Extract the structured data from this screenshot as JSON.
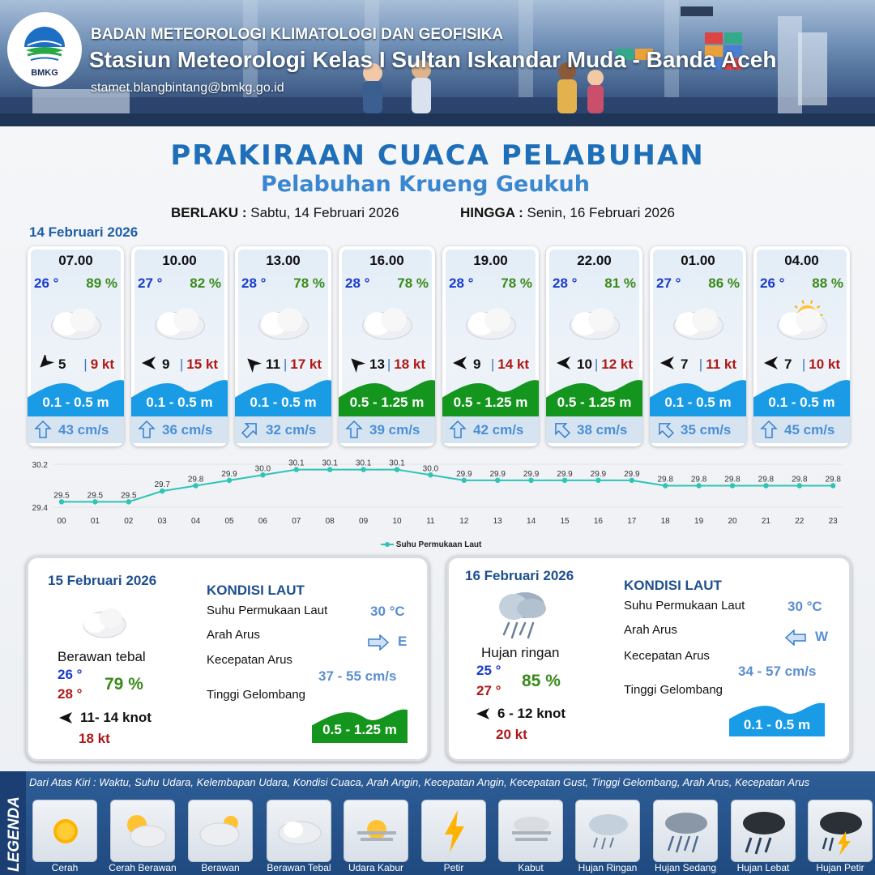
{
  "header": {
    "logo_text": "BMKG",
    "agency": "BADAN METEOROLOGI KLIMATOLOGI DAN GEOFISIKA",
    "station": "Stasiun Meteorologi Kelas I Sultan Iskandar Muda - Banda Aceh",
    "email": "stamet.blangbintang@bmkg.go.id"
  },
  "title": "PRAKIRAAN CUACA PELABUHAN",
  "subtitle": "Pelabuhan Krueng Geukuh",
  "validity": {
    "from_label": "BERLAKU :",
    "from_value": "Sabtu, 14 Februari 2026",
    "to_label": "HINGGA :",
    "to_value": "Senin, 16 Februari 2026"
  },
  "day1": {
    "date": "14 Februari 2026",
    "hours": [
      {
        "time": "07.00",
        "temp": "26 °",
        "rh": "89 %",
        "icon": "berawan-tebal",
        "wind_dir": "southeast",
        "wind": "5",
        "gust": "9 kt",
        "wave": "0.1 - 0.5 m",
        "wave_color": "#1a9be6",
        "current_dir": "north",
        "current": "43 cm/s"
      },
      {
        "time": "10.00",
        "temp": "27 °",
        "rh": "82 %",
        "icon": "berawan-tebal",
        "wind_dir": "east",
        "wind": "9",
        "gust": "15 kt",
        "wave": "0.1 - 0.5 m",
        "wave_color": "#1a9be6",
        "current_dir": "north",
        "current": "36 cm/s"
      },
      {
        "time": "13.00",
        "temp": "28 °",
        "rh": "78 %",
        "icon": "berawan-tebal",
        "wind_dir": "northeast",
        "wind": "11",
        "gust": "17 kt",
        "wave": "0.1 - 0.5 m",
        "wave_color": "#1a9be6",
        "current_dir": "northeast",
        "current": "32 cm/s"
      },
      {
        "time": "16.00",
        "temp": "28 °",
        "rh": "78 %",
        "icon": "berawan-tebal",
        "wind_dir": "northeast",
        "wind": "13",
        "gust": "18 kt",
        "wave": "0.5 - 1.25 m",
        "wave_color": "#14961e",
        "current_dir": "north",
        "current": "39 cm/s"
      },
      {
        "time": "19.00",
        "temp": "28 °",
        "rh": "78 %",
        "icon": "berawan-tebal",
        "wind_dir": "east",
        "wind": "9",
        "gust": "14 kt",
        "wave": "0.5 - 1.25 m",
        "wave_color": "#14961e",
        "current_dir": "north",
        "current": "42 cm/s"
      },
      {
        "time": "22.00",
        "temp": "28 °",
        "rh": "81 %",
        "icon": "berawan-tebal",
        "wind_dir": "east",
        "wind": "10",
        "gust": "12 kt",
        "wave": "0.5 - 1.25 m",
        "wave_color": "#14961e",
        "current_dir": "northwest",
        "current": "38 cm/s"
      },
      {
        "time": "01.00",
        "temp": "27 °",
        "rh": "86 %",
        "icon": "berawan-tebal",
        "wind_dir": "east",
        "wind": "7",
        "gust": "11 kt",
        "wave": "0.1 - 0.5 m",
        "wave_color": "#1a9be6",
        "current_dir": "northwest",
        "current": "35 cm/s"
      },
      {
        "time": "04.00",
        "temp": "26 °",
        "rh": "88 %",
        "icon": "cerah-berawan",
        "wind_dir": "east",
        "wind": "7",
        "gust": "10 kt",
        "wave": "0.1 - 0.5 m",
        "wave_color": "#1a9be6",
        "current_dir": "north",
        "current": "45 cm/s"
      }
    ]
  },
  "chart_data": {
    "type": "line",
    "x": [
      "00",
      "01",
      "02",
      "03",
      "04",
      "05",
      "06",
      "07",
      "08",
      "09",
      "10",
      "11",
      "12",
      "13",
      "14",
      "15",
      "16",
      "17",
      "18",
      "19",
      "20",
      "21",
      "22",
      "23"
    ],
    "series": [
      {
        "name": "Suhu Permukaan Laut",
        "values": [
          29.5,
          29.5,
          29.5,
          29.7,
          29.8,
          29.9,
          30.0,
          30.1,
          30.1,
          30.1,
          30.1,
          30.0,
          29.9,
          29.9,
          29.9,
          29.9,
          29.9,
          29.9,
          29.8,
          29.8,
          29.8,
          29.8,
          29.8,
          29.8
        ],
        "color": "#2ec4b6"
      }
    ],
    "ylim": [
      29.4,
      30.2
    ],
    "yticks": [
      "30.2",
      "29.4"
    ],
    "legend": "bottom"
  },
  "day2": {
    "date": "15 Februari 2026",
    "icon": "berawan-tebal",
    "condition": "Berawan tebal",
    "tmin": "26 °",
    "tmax": "28 °",
    "rh": "79 %",
    "wind_dir": "east",
    "wind": "11- 14 knot",
    "gust": "18 kt",
    "sea": {
      "heading": "KONDISI LAUT",
      "sst_label": "Suhu Permukaan Laut",
      "sst": "30 °C",
      "cur_dir_label": "Arah Arus",
      "cur_dir": "E",
      "cur_spd_label": "Kecepatan Arus",
      "cur_spd": "37  - 55 cm/s",
      "wave_label": "Tinggi Gelombang",
      "wave": "0.5 - 1.25 m",
      "wave_color": "#14961e"
    }
  },
  "day3": {
    "date": "16 Februari 2026",
    "icon": "hujan-ringan",
    "condition": "Hujan ringan",
    "tmin": "25 °",
    "tmax": "27 °",
    "rh": "85 %",
    "wind_dir": "east",
    "wind": "6  - 12 knot",
    "gust": "20 kt",
    "sea": {
      "heading": "KONDISI LAUT",
      "sst_label": "Suhu Permukaan Laut",
      "sst": "30 °C",
      "cur_dir_label": "Arah Arus",
      "cur_dir": "W",
      "cur_spd_label": "Kecepatan Arus",
      "cur_spd": "34 - 57 cm/s",
      "wave_label": "Tinggi Gelombang",
      "wave": "0.1 - 0.5 m",
      "wave_color": "#1a9be6"
    }
  },
  "legend": {
    "side_label": "LEGENDA",
    "description": "Dari Atas Kiri : Waktu, Suhu Udara, Kelembapan Udara, Kondisi Cuaca, Arah Angin, Kecepatan Angin, Kecepatan Gust, Tinggi Gelombang, Arah Arus, Kecepatan Arus",
    "items": [
      {
        "label": "Cerah",
        "icon": "sun"
      },
      {
        "label": "Cerah Berawan",
        "icon": "sun-cloud"
      },
      {
        "label": "Berawan",
        "icon": "cloud-sun"
      },
      {
        "label": "Berawan Tebal",
        "icon": "cloud"
      },
      {
        "label": "Udara Kabur",
        "icon": "haze"
      },
      {
        "label": "Petir",
        "icon": "lightning"
      },
      {
        "label": "Kabut",
        "icon": "fog"
      },
      {
        "label": "Hujan Ringan",
        "icon": "rain-light"
      },
      {
        "label": "Hujan Sedang",
        "icon": "rain-moderate"
      },
      {
        "label": "Hujan Lebat",
        "icon": "rain-heavy"
      },
      {
        "label": "Hujan Petir",
        "icon": "thunderstorm"
      }
    ]
  }
}
